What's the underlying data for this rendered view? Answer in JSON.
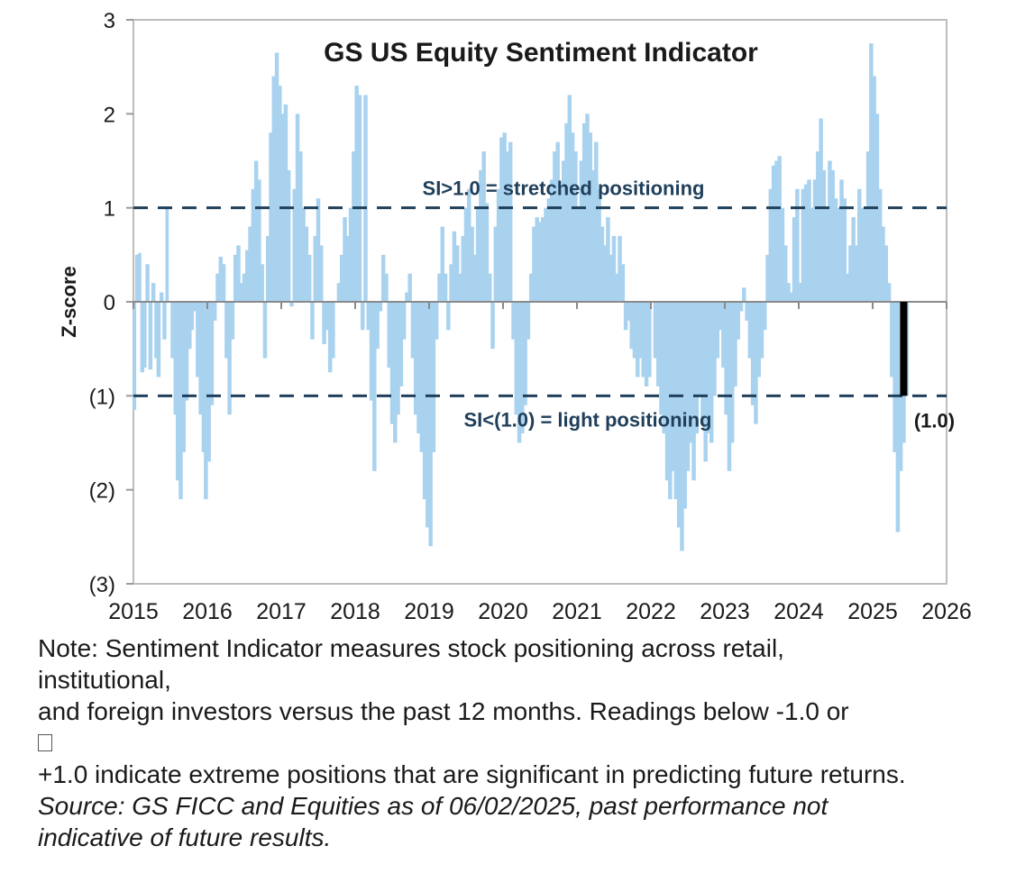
{
  "chart_data": {
    "type": "bar",
    "title": "GS US Equity  Sentiment Indicator",
    "ylabel": "Z-score",
    "xlabel": "",
    "ylim": [
      -3,
      3
    ],
    "xlim": [
      2015,
      2026
    ],
    "y_ticks": [
      3,
      2,
      1,
      0,
      -1,
      -2,
      -3
    ],
    "y_tick_labels": [
      "3",
      "2",
      "1",
      "0",
      "(1)",
      "(2)",
      "(3)"
    ],
    "x_ticks": [
      2015,
      2016,
      2017,
      2018,
      2019,
      2020,
      2021,
      2022,
      2023,
      2024,
      2025,
      2026
    ],
    "x_tick_labels": [
      "2015",
      "2016",
      "2017",
      "2018",
      "2019",
      "2020",
      "2021",
      "2022",
      "2023",
      "2024",
      "2025",
      "2026"
    ],
    "reference_lines": [
      {
        "value": 1.0,
        "label": "SI>1.0 = stretched positioning"
      },
      {
        "value": -1.0,
        "label": "SI<(1.0) = light positioning"
      }
    ],
    "latest": {
      "x": 2025.42,
      "value": -1.0,
      "label": "(1.0)"
    },
    "series": [
      {
        "name": "Sentiment Indicator (Z-score)",
        "color": "#a9d2ef",
        "points": [
          [
            2015.0,
            -1.15
          ],
          [
            2015.03,
            0.5
          ],
          [
            2015.07,
            0.52
          ],
          [
            2015.1,
            -0.75
          ],
          [
            2015.14,
            -0.7
          ],
          [
            2015.17,
            0.4
          ],
          [
            2015.21,
            -0.72
          ],
          [
            2015.25,
            0.2
          ],
          [
            2015.29,
            -0.6
          ],
          [
            2015.32,
            -0.8
          ],
          [
            2015.36,
            0.1
          ],
          [
            2015.4,
            -0.4
          ],
          [
            2015.44,
            1.0
          ],
          [
            2015.47,
            0.0
          ],
          [
            2015.51,
            -0.6
          ],
          [
            2015.55,
            -1.2
          ],
          [
            2015.58,
            -1.9
          ],
          [
            2015.62,
            -2.1
          ],
          [
            2015.66,
            -1.6
          ],
          [
            2015.7,
            -1.05
          ],
          [
            2015.74,
            -0.5
          ],
          [
            2015.78,
            -0.3
          ],
          [
            2015.81,
            -0.1
          ],
          [
            2015.85,
            -0.8
          ],
          [
            2015.89,
            -1.2
          ],
          [
            2015.93,
            -1.6
          ],
          [
            2015.96,
            -2.1
          ],
          [
            2016.0,
            -1.7
          ],
          [
            2016.04,
            -1.1
          ],
          [
            2016.08,
            -0.2
          ],
          [
            2016.12,
            0.3
          ],
          [
            2016.16,
            0.48
          ],
          [
            2016.2,
            0.4
          ],
          [
            2016.24,
            -0.6
          ],
          [
            2016.28,
            -1.2
          ],
          [
            2016.32,
            -0.4
          ],
          [
            2016.36,
            0.5
          ],
          [
            2016.4,
            0.6
          ],
          [
            2016.44,
            0.2
          ],
          [
            2016.48,
            0.3
          ],
          [
            2016.52,
            0.55
          ],
          [
            2016.56,
            0.8
          ],
          [
            2016.6,
            1.2
          ],
          [
            2016.64,
            1.5
          ],
          [
            2016.68,
            1.3
          ],
          [
            2016.72,
            0.4
          ],
          [
            2016.76,
            -0.6
          ],
          [
            2016.8,
            0.7
          ],
          [
            2016.84,
            1.8
          ],
          [
            2016.88,
            2.4
          ],
          [
            2016.92,
            2.65
          ],
          [
            2016.96,
            2.3
          ],
          [
            2017.0,
            2.0
          ],
          [
            2017.04,
            2.1
          ],
          [
            2017.08,
            1.4
          ],
          [
            2017.12,
            -0.05
          ],
          [
            2017.16,
            1.2
          ],
          [
            2017.2,
            2.0
          ],
          [
            2017.24,
            1.6
          ],
          [
            2017.28,
            1.0
          ],
          [
            2017.32,
            0.8
          ],
          [
            2017.36,
            0.5
          ],
          [
            2017.4,
            -0.4
          ],
          [
            2017.44,
            0.7
          ],
          [
            2017.48,
            1.1
          ],
          [
            2017.52,
            0.6
          ],
          [
            2017.56,
            -0.45
          ],
          [
            2017.6,
            -0.3
          ],
          [
            2017.64,
            -0.75
          ],
          [
            2017.68,
            -0.6
          ],
          [
            2017.72,
            0.0
          ],
          [
            2017.76,
            0.2
          ],
          [
            2017.8,
            0.5
          ],
          [
            2017.84,
            0.9
          ],
          [
            2017.88,
            0.7
          ],
          [
            2017.92,
            1.0
          ],
          [
            2017.96,
            1.6
          ],
          [
            2018.0,
            2.3
          ],
          [
            2018.04,
            2.2
          ],
          [
            2018.08,
            -0.3
          ],
          [
            2018.12,
            2.2
          ],
          [
            2018.16,
            -0.3
          ],
          [
            2018.2,
            -1.05
          ],
          [
            2018.24,
            -1.8
          ],
          [
            2018.28,
            -0.5
          ],
          [
            2018.32,
            -0.1
          ],
          [
            2018.36,
            0.5
          ],
          [
            2018.4,
            0.3
          ],
          [
            2018.44,
            -0.7
          ],
          [
            2018.48,
            -1.3
          ],
          [
            2018.52,
            -1.5
          ],
          [
            2018.56,
            -1.2
          ],
          [
            2018.6,
            -0.9
          ],
          [
            2018.64,
            -0.4
          ],
          [
            2018.68,
            0.1
          ],
          [
            2018.72,
            0.3
          ],
          [
            2018.76,
            -0.6
          ],
          [
            2018.8,
            -1.2
          ],
          [
            2018.84,
            -1.4
          ],
          [
            2018.88,
            -1.6
          ],
          [
            2018.92,
            -2.1
          ],
          [
            2018.96,
            -2.4
          ],
          [
            2019.0,
            -2.6
          ],
          [
            2019.04,
            -1.6
          ],
          [
            2019.08,
            -0.4
          ],
          [
            2019.12,
            0.3
          ],
          [
            2019.16,
            0.8
          ],
          [
            2019.2,
            0.3
          ],
          [
            2019.24,
            -0.3
          ],
          [
            2019.28,
            0.4
          ],
          [
            2019.32,
            0.75
          ],
          [
            2019.36,
            0.6
          ],
          [
            2019.4,
            0.3
          ],
          [
            2019.44,
            0.7
          ],
          [
            2019.48,
            1.0
          ],
          [
            2019.52,
            1.2
          ],
          [
            2019.56,
            0.8
          ],
          [
            2019.6,
            0.5
          ],
          [
            2019.64,
            1.0
          ],
          [
            2019.68,
            1.4
          ],
          [
            2019.72,
            1.6
          ],
          [
            2019.76,
            1.05
          ],
          [
            2019.8,
            0.3
          ],
          [
            2019.84,
            -0.5
          ],
          [
            2019.88,
            0.8
          ],
          [
            2019.92,
            1.2
          ],
          [
            2019.96,
            1.75
          ],
          [
            2020.0,
            1.8
          ],
          [
            2020.04,
            1.6
          ],
          [
            2020.08,
            1.7
          ],
          [
            2020.12,
            -0.4
          ],
          [
            2020.16,
            -1.2
          ],
          [
            2020.2,
            -1.5
          ],
          [
            2020.24,
            -1.4
          ],
          [
            2020.28,
            -1.1
          ],
          [
            2020.32,
            -0.4
          ],
          [
            2020.36,
            0.3
          ],
          [
            2020.4,
            0.8
          ],
          [
            2020.44,
            0.9
          ],
          [
            2020.48,
            0.85
          ],
          [
            2020.52,
            0.9
          ],
          [
            2020.56,
            1.0
          ],
          [
            2020.6,
            1.1
          ],
          [
            2020.64,
            1.3
          ],
          [
            2020.68,
            1.6
          ],
          [
            2020.72,
            1.7
          ],
          [
            2020.76,
            1.2
          ],
          [
            2020.8,
            1.5
          ],
          [
            2020.84,
            1.9
          ],
          [
            2020.88,
            2.2
          ],
          [
            2020.92,
            1.8
          ],
          [
            2020.96,
            1.6
          ],
          [
            2021.0,
            1.0
          ],
          [
            2021.04,
            1.5
          ],
          [
            2021.08,
            1.9
          ],
          [
            2021.12,
            2.0
          ],
          [
            2021.16,
            1.8
          ],
          [
            2021.2,
            1.4
          ],
          [
            2021.24,
            1.7
          ],
          [
            2021.28,
            1.2
          ],
          [
            2021.32,
            0.8
          ],
          [
            2021.36,
            0.6
          ],
          [
            2021.4,
            0.9
          ],
          [
            2021.44,
            0.5
          ],
          [
            2021.48,
            0.7
          ],
          [
            2021.52,
            0.3
          ],
          [
            2021.56,
            0.7
          ],
          [
            2021.6,
            0.4
          ],
          [
            2021.64,
            -0.3
          ],
          [
            2021.68,
            -0.2
          ],
          [
            2021.72,
            -0.5
          ],
          [
            2021.76,
            -0.6
          ],
          [
            2021.8,
            -0.8
          ],
          [
            2021.84,
            -0.6
          ],
          [
            2021.88,
            -0.8
          ],
          [
            2021.92,
            -0.9
          ],
          [
            2021.96,
            -0.8
          ],
          [
            2022.0,
            0.0
          ],
          [
            2022.04,
            -0.6
          ],
          [
            2022.08,
            -0.9
          ],
          [
            2022.12,
            -1.2
          ],
          [
            2022.16,
            -1.4
          ],
          [
            2022.2,
            -1.9
          ],
          [
            2022.24,
            -2.1
          ],
          [
            2022.28,
            -1.8
          ],
          [
            2022.32,
            -2.1
          ],
          [
            2022.36,
            -2.4
          ],
          [
            2022.4,
            -2.65
          ],
          [
            2022.44,
            -2.2
          ],
          [
            2022.48,
            -1.8
          ],
          [
            2022.52,
            -1.5
          ],
          [
            2022.56,
            -1.9
          ],
          [
            2022.6,
            -1.4
          ],
          [
            2022.64,
            -1.0
          ],
          [
            2022.68,
            -1.3
          ],
          [
            2022.72,
            -1.7
          ],
          [
            2022.76,
            -1.4
          ],
          [
            2022.8,
            -1.5
          ],
          [
            2022.84,
            -1.0
          ],
          [
            2022.88,
            -0.6
          ],
          [
            2022.92,
            -0.3
          ],
          [
            2022.96,
            -0.7
          ],
          [
            2023.0,
            -1.2
          ],
          [
            2023.04,
            -1.8
          ],
          [
            2023.08,
            -1.5
          ],
          [
            2023.12,
            -0.9
          ],
          [
            2023.16,
            -0.4
          ],
          [
            2023.2,
            -0.1
          ],
          [
            2023.24,
            0.15
          ],
          [
            2023.28,
            -0.2
          ],
          [
            2023.32,
            -0.6
          ],
          [
            2023.36,
            -1.1
          ],
          [
            2023.4,
            -1.3
          ],
          [
            2023.44,
            -0.8
          ],
          [
            2023.48,
            -0.6
          ],
          [
            2023.52,
            -0.3
          ],
          [
            2023.56,
            0.5
          ],
          [
            2023.6,
            1.2
          ],
          [
            2023.64,
            1.45
          ],
          [
            2023.68,
            1.5
          ],
          [
            2023.72,
            1.55
          ],
          [
            2023.76,
            1.0
          ],
          [
            2023.8,
            0.6
          ],
          [
            2023.84,
            0.2
          ],
          [
            2023.88,
            0.1
          ],
          [
            2023.92,
            0.9
          ],
          [
            2023.96,
            1.2
          ],
          [
            2024.0,
            0.2
          ],
          [
            2024.04,
            1.2
          ],
          [
            2024.08,
            1.25
          ],
          [
            2024.12,
            1.3
          ],
          [
            2024.16,
            1.0
          ],
          [
            2024.2,
            1.3
          ],
          [
            2024.24,
            1.6
          ],
          [
            2024.28,
            1.95
          ],
          [
            2024.32,
            1.4
          ],
          [
            2024.36,
            1.0
          ],
          [
            2024.4,
            1.5
          ],
          [
            2024.44,
            1.4
          ],
          [
            2024.48,
            1.1
          ],
          [
            2024.52,
            1.0
          ],
          [
            2024.56,
            1.3
          ],
          [
            2024.6,
            1.1
          ],
          [
            2024.64,
            0.3
          ],
          [
            2024.68,
            0.6
          ],
          [
            2024.72,
            0.9
          ],
          [
            2024.76,
            0.6
          ],
          [
            2024.8,
            1.2
          ],
          [
            2024.84,
            1.0
          ],
          [
            2024.88,
            1.0
          ],
          [
            2024.92,
            1.6
          ],
          [
            2024.96,
            2.75
          ],
          [
            2025.0,
            2.4
          ],
          [
            2025.04,
            2.0
          ],
          [
            2025.08,
            1.2
          ],
          [
            2025.12,
            0.8
          ],
          [
            2025.16,
            0.6
          ],
          [
            2025.2,
            0.2
          ],
          [
            2025.24,
            -0.8
          ],
          [
            2025.28,
            -1.6
          ],
          [
            2025.32,
            -2.45
          ],
          [
            2025.36,
            -1.8
          ],
          [
            2025.4,
            -1.5
          ],
          [
            2025.44,
            -1.0
          ]
        ]
      }
    ],
    "latest_color": "#000000",
    "ref_line_color": "#1f3f5a"
  },
  "note": {
    "line1": "Note: Sentiment Indicator measures stock positioning across retail,",
    "line2": "institutional,",
    "line3": "and foreign investors versus the past 12 months. Readings below -1.0 or",
    "line4": "+1.0 indicate extreme positions that are significant in predicting future returns.",
    "source1": "Source: GS FICC and Equities as of 06/02/2025, past performance not",
    "source2": "indicative of future results."
  }
}
